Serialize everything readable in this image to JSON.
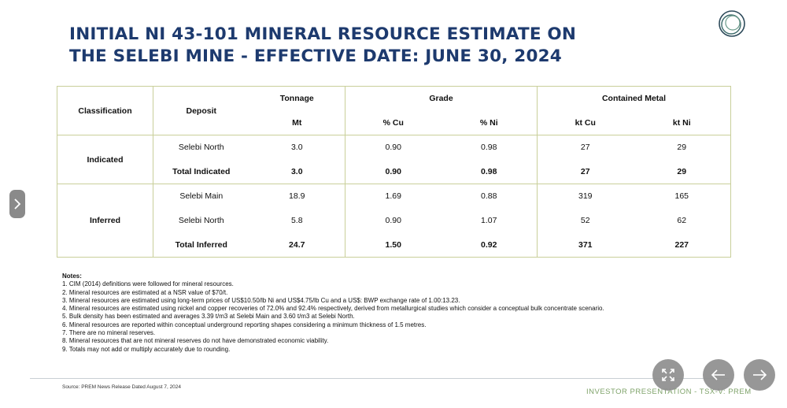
{
  "title": {
    "line1": "INITIAL NI 43-101 MINERAL RESOURCE ESTIMATE ON",
    "line2": "THE SELEBI MINE  - EFFECTIVE DATE: JUNE 30, 2024"
  },
  "table": {
    "headers": {
      "classification": "Classification",
      "deposit": "Deposit",
      "tonnage": "Tonnage",
      "grade": "Grade",
      "contained_metal": "Contained Metal",
      "mt": "Mt",
      "pct_cu": "% Cu",
      "pct_ni": "% Ni",
      "kt_cu": "kt Cu",
      "kt_ni": "kt Ni"
    },
    "indicated": {
      "label": "Indicated",
      "rows": [
        {
          "deposit": "Selebi North",
          "mt": "3.0",
          "cu": "0.90",
          "ni": "0.98",
          "ktcu": "27",
          "ktni": "29"
        },
        {
          "deposit": "Total Indicated",
          "mt": "3.0",
          "cu": "0.90",
          "ni": "0.98",
          "ktcu": "27",
          "ktni": "29"
        }
      ]
    },
    "inferred": {
      "label": "Inferred",
      "rows": [
        {
          "deposit": "Selebi Main",
          "mt": "18.9",
          "cu": "1.69",
          "ni": "0.88",
          "ktcu": "319",
          "ktni": "165"
        },
        {
          "deposit": "Selebi North",
          "mt": "5.8",
          "cu": "0.90",
          "ni": "1.07",
          "ktcu": "52",
          "ktni": "62"
        },
        {
          "deposit": "Total Inferred",
          "mt": "24.7",
          "cu": "1.50",
          "ni": "0.92",
          "ktcu": "371",
          "ktni": "227"
        }
      ]
    }
  },
  "notes": {
    "heading": "Notes:",
    "items": [
      "1. CIM (2014) definitions were followed for mineral resources.",
      "2. Mineral resources are estimated at a NSR value of $70/t.",
      "3. Mineral resources are estimated using long-term prices of US$10.50/lb Ni and US$4.75/lb Cu and a US$: BWP exchange rate of 1.00:13.23.",
      "4. Mineral resources are estimated using nickel and copper recoveries of 72.0% and 92.4% respectively, derived from metallurgical studies which consider a conceptual bulk concentrate scenario.",
      "5. Bulk density has been estimated and averages 3.39 t/m3 at Selebi Main and 3.60 t/m3 at Selebi North.",
      "6. Mineral resources are reported within conceptual underground reporting shapes considering a minimum thickness of 1.5 metres.",
      "7. There are no mineral reserves.",
      "8. Mineral resources that are not mineral reserves do not have demonstrated economic viability.",
      "9. Totals may not add or multiply accurately due to rounding."
    ]
  },
  "source": "Source: PREM News Release Dated August 7, 2024",
  "footer_tag": "INVESTOR PRESENTATION - TSX-V: PREM",
  "icons": {
    "logo": "ring-logo-icon",
    "side_nav": "chevron-right-icon",
    "fullscreen": "expand-icon",
    "prev": "arrow-left-icon",
    "next": "arrow-right-icon"
  },
  "colors": {
    "title": "#1d3a6e",
    "table_border": "#c9cf9a",
    "footer_tag": "#7fa36a",
    "nav_buttons": "#8f8f8f"
  }
}
